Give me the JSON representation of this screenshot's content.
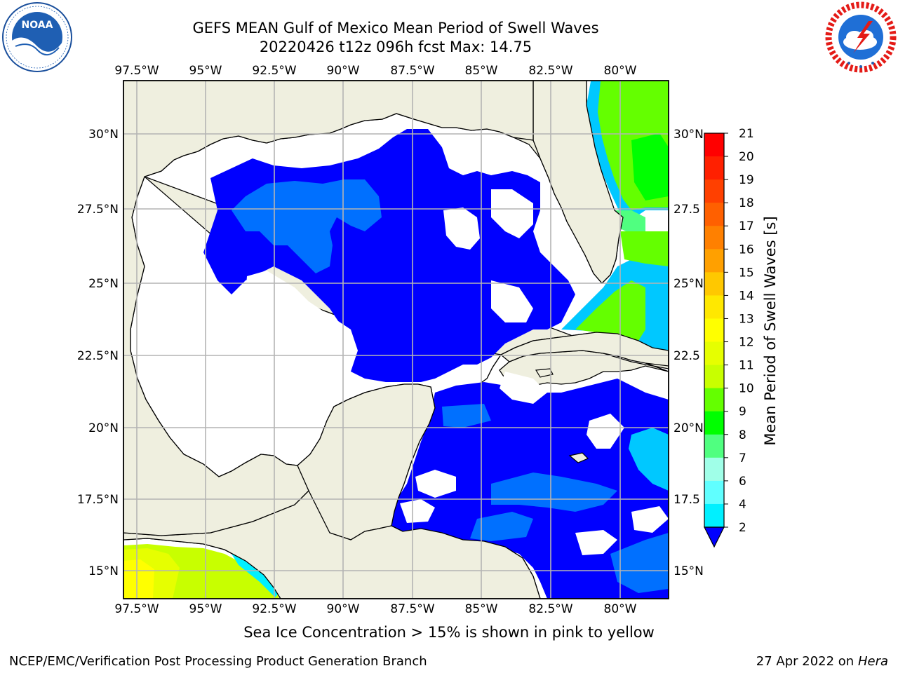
{
  "header": {
    "title_line1": "GEFS MEAN Gulf of Mexico Mean Period of Swell Waves",
    "title_line2": "20220426 t12z 096h fcst   Max: 14.75"
  },
  "logos": {
    "left": {
      "name": "NOAA",
      "ring_text": "NATIONAL OCEANIC AND ATMOSPHERIC ADMINISTRATION · U.S. DEPARTMENT OF COMMERCE"
    },
    "right": {
      "name": "NATIONAL WEATHER SERVICE"
    }
  },
  "map": {
    "lon_labels": [
      "97.5°W",
      "95°W",
      "92.5°W",
      "90°W",
      "87.5°W",
      "85°W",
      "82.5°W",
      "80°W"
    ],
    "lat_labels_left": [
      "30°N",
      "27.5°N",
      "25°N",
      "22.5°N",
      "20°N",
      "17.5°N",
      "15°N"
    ],
    "lat_labels_right": [
      "30°N",
      "27.5",
      "25°N",
      "22.5",
      "20°N",
      "17.5",
      "15°N"
    ],
    "colors": {
      "land": "#efefdf",
      "coast": "#000000",
      "grid": "#b4b4b4",
      "nodata": "#ffffff"
    }
  },
  "colorbar": {
    "label": "Mean Period of Swell Waves [s]",
    "ticks": [
      "21",
      "20",
      "19",
      "18",
      "17",
      "16",
      "15",
      "14",
      "13",
      "12",
      "11",
      "10",
      "9",
      "8",
      "7",
      "6",
      "4",
      "2"
    ],
    "colors": [
      "#ff0000",
      "#ff2000",
      "#ff4000",
      "#ff6000",
      "#ff8000",
      "#ffa000",
      "#ffc800",
      "#ffe800",
      "#ffff00",
      "#e6ff00",
      "#c8ff00",
      "#64ff00",
      "#00ff00",
      "#50ff80",
      "#a0ffe8",
      "#60ffff",
      "#00f0ff",
      "#00c8ff",
      "#0070ff",
      "#0000ff"
    ]
  },
  "footer": {
    "ice_note": "Sea Ice Concentration > 15% is shown in pink to yellow",
    "credit": "NCEP/EMC/Verification Post Processing Product Generation Branch",
    "date_prefix": "27 Apr 2022 on ",
    "date_machine": "Hera"
  }
}
